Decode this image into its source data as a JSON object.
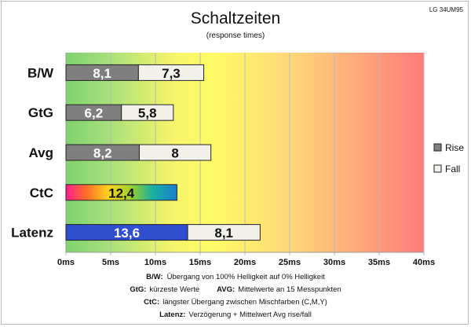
{
  "chart_data": {
    "type": "bar",
    "orientation": "horizontal",
    "stacked": true,
    "title": "Schaltzeiten",
    "subtitle": "(response times)",
    "corner_label": "LG 34UM95",
    "categories": [
      "B/W",
      "GtG",
      "Avg",
      "CtC",
      "Latenz"
    ],
    "series": [
      {
        "name": "Rise",
        "values": [
          8.1,
          6.2,
          8.2,
          12.4,
          13.6
        ],
        "labels": [
          "8,1",
          "6,2",
          "8,2",
          "12,4",
          "13,6"
        ],
        "color": "#7f7f7f"
      },
      {
        "name": "Fall",
        "values": [
          7.3,
          5.8,
          8,
          null,
          8.1
        ],
        "labels": [
          "7,3",
          "5,8",
          "8",
          "",
          "8,1"
        ],
        "color": "#f2f0ea"
      }
    ],
    "special_bars": {
      "CtC": "rainbow-gradient",
      "Latenz": "#2f4fcf"
    },
    "x_ticks": [
      0,
      5,
      10,
      15,
      20,
      25,
      30,
      35,
      40
    ],
    "x_tick_labels": [
      "0ms",
      "5ms",
      "10ms",
      "15ms",
      "20ms",
      "25ms",
      "30ms",
      "35ms",
      "40ms"
    ],
    "xlim": [
      0,
      40
    ],
    "background": "green-yellow-red gradient",
    "grid": "vertical",
    "legend_position": "right"
  },
  "notes": [
    {
      "key": "B/W:",
      "text": "Übergang von 100% Helligkeit auf 0% Helligkeit"
    },
    {
      "key": "GtG:",
      "text": "kürzeste Werte",
      "key2": "AVG:",
      "text2": "Mittelwerte an 15 Messpunkten"
    },
    {
      "key": "CtC:",
      "text": "längster Übergang zwischen Mischfarben (C,M,Y)"
    },
    {
      "key": "Latenz:",
      "text": "Verzögerung + Mittelwert Avg rise/fall"
    }
  ],
  "colors": {
    "rise": "#7f7f7f",
    "fall": "#f2f0ea",
    "latenz": "#2f4fcf",
    "green": "#7ed36f",
    "yellow": "#ffff66",
    "red": "#ff7a7a"
  }
}
